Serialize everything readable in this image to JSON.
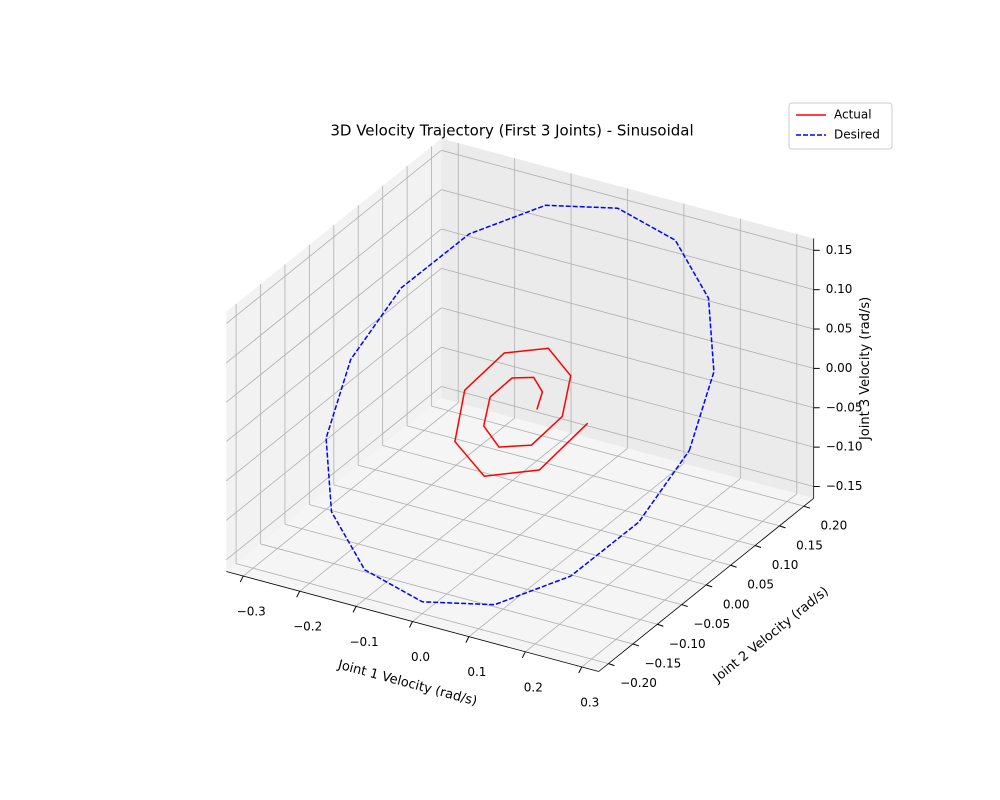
{
  "chart_data": {
    "type": "line3d",
    "title": "3D Velocity Trajectory (First 3 Joints) - Sinusoidal",
    "x_label": "Joint 1 Velocity (rad/s)",
    "y_label": "Joint 2 Velocity (rad/s)",
    "z_label": "Joint 3 Velocity (rad/s)",
    "xlim": [
      -0.33,
      0.33
    ],
    "ylim": [
      -0.22,
      0.22
    ],
    "zlim": [
      -0.165,
      0.165
    ],
    "xticks": [
      {
        "value": -0.3,
        "label": "−0.3"
      },
      {
        "value": -0.2,
        "label": "−0.2"
      },
      {
        "value": -0.1,
        "label": "−0.1"
      },
      {
        "value": 0,
        "label": "0.0"
      },
      0.1,
      0.2,
      0.3
    ],
    "yticks": [
      {
        "value": -0.2,
        "label": "−0.20"
      },
      {
        "value": -0.15,
        "label": "−0.15"
      },
      {
        "value": -0.1,
        "label": "−0.10"
      },
      {
        "value": -0.05,
        "label": "−0.05"
      },
      {
        "value": 0,
        "label": "0.00"
      },
      0.05,
      {
        "value": 0.1,
        "label": "0.10"
      },
      0.15,
      {
        "value": 0.2,
        "label": "0.20"
      }
    ],
    "zticks": [
      {
        "value": -0.15,
        "label": "−0.15"
      },
      {
        "value": -0.1,
        "label": "−0.10"
      },
      {
        "value": -0.05,
        "label": "−0.05"
      },
      {
        "value": 0,
        "label": "0.00"
      },
      0.05,
      {
        "value": 0.1,
        "label": "0.10"
      },
      0.15
    ],
    "grid": true,
    "legend": "upper right",
    "series": [
      {
        "name": "Actual",
        "color": "#ff0000",
        "style": "solid",
        "x": [
          0.03,
          0.025,
          0,
          -0.033,
          -0.053,
          -0.041,
          0,
          0.049,
          0.075,
          0.057,
          0,
          -0.065,
          -0.098,
          -0.073,
          0,
          0.081,
          0.12
        ],
        "y": [
          0,
          0.017,
          0.028,
          0.022,
          0,
          -0.027,
          -0.043,
          -0.033,
          0,
          0.038,
          0.058,
          0.043,
          0,
          -0.049,
          -0.073,
          -0.054,
          0
        ],
        "z": [
          0,
          0.013,
          0.021,
          0.017,
          0,
          -0.021,
          -0.032,
          -0.025,
          0,
          0.029,
          0.043,
          0.032,
          0,
          -0.036,
          -0.054,
          -0.04,
          0
        ]
      },
      {
        "name": "Desired",
        "color": "#0000ff",
        "style": "dashed",
        "x": [
          0.3,
          0.277,
          0.212,
          0.115,
          0,
          -0.115,
          -0.212,
          -0.277,
          -0.3,
          -0.277,
          -0.212,
          -0.115,
          0,
          0.115,
          0.212,
          0.277,
          0.3
        ],
        "y": [
          0,
          0.077,
          0.141,
          0.185,
          0.2,
          0.185,
          0.141,
          0.077,
          0,
          -0.077,
          -0.141,
          -0.185,
          -0.2,
          -0.185,
          -0.141,
          -0.077,
          0
        ],
        "z": [
          0,
          0.057,
          0.106,
          0.139,
          0.15,
          0.139,
          0.106,
          0.057,
          0,
          -0.057,
          -0.106,
          -0.139,
          -0.15,
          -0.139,
          -0.106,
          -0.057,
          0
        ]
      }
    ]
  }
}
